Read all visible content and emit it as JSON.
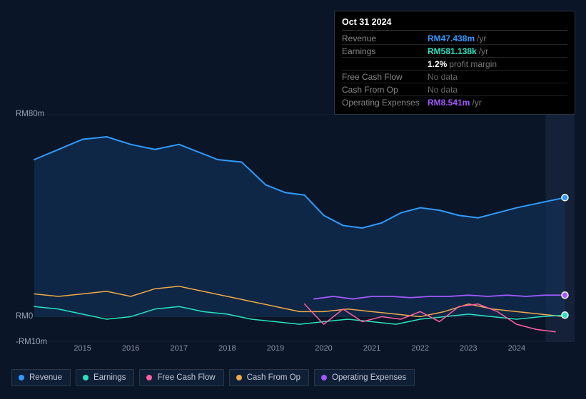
{
  "tooltip": {
    "date": "Oct 31 2024",
    "rows": [
      {
        "label": "Revenue",
        "value": "RM47.438m",
        "suffix": "/yr",
        "cls": "val-rev"
      },
      {
        "label": "Earnings",
        "value": "RM581.138k",
        "suffix": "/yr",
        "cls": "val-earn"
      },
      {
        "label": "",
        "value": "1.2%",
        "suffix": "profit margin",
        "cls": "val-pm"
      },
      {
        "label": "Free Cash Flow",
        "value": "No data",
        "suffix": "",
        "cls": "val-nodata"
      },
      {
        "label": "Cash From Op",
        "value": "No data",
        "suffix": "",
        "cls": "val-nodata"
      },
      {
        "label": "Operating Expenses",
        "value": "RM8.541m",
        "suffix": "/yr",
        "cls": "val-opex"
      }
    ]
  },
  "chart": {
    "ylim": [
      -10,
      80
    ],
    "y_ticks": [
      {
        "v": 80,
        "label": "RM80m"
      },
      {
        "v": 0,
        "label": "RM0"
      },
      {
        "v": -10,
        "label": "-RM10m"
      }
    ],
    "x_ticks": [
      "2015",
      "2016",
      "2017",
      "2018",
      "2019",
      "2020",
      "2021",
      "2022",
      "2023",
      "2024"
    ],
    "x_domain": [
      2014.0,
      2025.2
    ],
    "highlight_band": [
      2024.6,
      2025.2
    ],
    "grid_color": "#1a2432",
    "background": "#0a1628",
    "series": [
      {
        "name": "Revenue",
        "color": "#2f9bff",
        "fill": "#13365f",
        "fill_opacity": 0.55,
        "width": 2,
        "data": [
          [
            2014.0,
            62
          ],
          [
            2014.5,
            66
          ],
          [
            2015.0,
            70
          ],
          [
            2015.5,
            71
          ],
          [
            2016.0,
            68
          ],
          [
            2016.5,
            66
          ],
          [
            2017.0,
            68
          ],
          [
            2017.4,
            65
          ],
          [
            2017.8,
            62
          ],
          [
            2018.3,
            61
          ],
          [
            2018.8,
            52
          ],
          [
            2019.2,
            49
          ],
          [
            2019.6,
            48
          ],
          [
            2020.0,
            40
          ],
          [
            2020.4,
            36
          ],
          [
            2020.8,
            35
          ],
          [
            2021.2,
            37
          ],
          [
            2021.6,
            41
          ],
          [
            2022.0,
            43
          ],
          [
            2022.4,
            42
          ],
          [
            2022.8,
            40
          ],
          [
            2023.2,
            39
          ],
          [
            2023.6,
            41
          ],
          [
            2024.0,
            43
          ],
          [
            2024.5,
            45
          ],
          [
            2025.0,
            47
          ]
        ]
      },
      {
        "name": "Cash From Op",
        "color": "#f0a848",
        "fill": null,
        "width": 1.5,
        "data": [
          [
            2014.0,
            9
          ],
          [
            2014.5,
            8
          ],
          [
            2015.0,
            9
          ],
          [
            2015.5,
            10
          ],
          [
            2016.0,
            8
          ],
          [
            2016.5,
            11
          ],
          [
            2017.0,
            12
          ],
          [
            2017.5,
            10
          ],
          [
            2018.0,
            8
          ],
          [
            2018.5,
            6
          ],
          [
            2019.0,
            4
          ],
          [
            2019.5,
            2
          ],
          [
            2020.0,
            2
          ],
          [
            2020.5,
            3
          ],
          [
            2021.0,
            2
          ],
          [
            2021.5,
            1
          ],
          [
            2022.0,
            0
          ],
          [
            2022.5,
            2
          ],
          [
            2023.0,
            5
          ],
          [
            2023.5,
            3
          ],
          [
            2024.0,
            2
          ],
          [
            2024.5,
            1
          ],
          [
            2025.0,
            0
          ]
        ]
      },
      {
        "name": "Earnings",
        "color": "#29e3c1",
        "fill": null,
        "width": 1.5,
        "data": [
          [
            2014.0,
            4
          ],
          [
            2014.5,
            3
          ],
          [
            2015.0,
            1
          ],
          [
            2015.5,
            -1
          ],
          [
            2016.0,
            0
          ],
          [
            2016.5,
            3
          ],
          [
            2017.0,
            4
          ],
          [
            2017.5,
            2
          ],
          [
            2018.0,
            1
          ],
          [
            2018.5,
            -1
          ],
          [
            2019.0,
            -2
          ],
          [
            2019.5,
            -3
          ],
          [
            2020.0,
            -2
          ],
          [
            2020.5,
            -1
          ],
          [
            2021.0,
            -2
          ],
          [
            2021.5,
            -3
          ],
          [
            2022.0,
            -1
          ],
          [
            2022.5,
            0
          ],
          [
            2023.0,
            1
          ],
          [
            2023.5,
            0
          ],
          [
            2024.0,
            -1
          ],
          [
            2024.5,
            0
          ],
          [
            2025.0,
            0.6
          ]
        ]
      },
      {
        "name": "Free Cash Flow",
        "color": "#ff5fa2",
        "fill": null,
        "width": 1.5,
        "data": [
          [
            2019.6,
            5
          ],
          [
            2020.0,
            -3
          ],
          [
            2020.4,
            3
          ],
          [
            2020.8,
            -2
          ],
          [
            2021.2,
            0
          ],
          [
            2021.6,
            -1
          ],
          [
            2022.0,
            2
          ],
          [
            2022.4,
            -2
          ],
          [
            2022.8,
            4
          ],
          [
            2023.2,
            5
          ],
          [
            2023.6,
            2
          ],
          [
            2024.0,
            -3
          ],
          [
            2024.4,
            -5
          ],
          [
            2024.8,
            -6
          ]
        ]
      },
      {
        "name": "Operating Expenses",
        "color": "#a259ff",
        "fill": null,
        "width": 1.8,
        "data": [
          [
            2019.8,
            7
          ],
          [
            2020.2,
            8
          ],
          [
            2020.6,
            7
          ],
          [
            2021.0,
            8
          ],
          [
            2021.4,
            8
          ],
          [
            2021.8,
            7.5
          ],
          [
            2022.2,
            8
          ],
          [
            2022.6,
            8
          ],
          [
            2023.0,
            8.5
          ],
          [
            2023.4,
            8
          ],
          [
            2023.8,
            8.5
          ],
          [
            2024.2,
            8
          ],
          [
            2024.6,
            8.5
          ],
          [
            2025.0,
            8.5
          ]
        ]
      }
    ],
    "markers": [
      {
        "x": 2025.0,
        "y": 47,
        "color": "#2f9bff"
      },
      {
        "x": 2025.0,
        "y": 8.5,
        "color": "#a259ff"
      },
      {
        "x": 2025.0,
        "y": 0.6,
        "color": "#29e3c1"
      }
    ]
  },
  "legend": [
    {
      "label": "Revenue",
      "color": "#2f9bff"
    },
    {
      "label": "Earnings",
      "color": "#29e3c1"
    },
    {
      "label": "Free Cash Flow",
      "color": "#ff5fa2"
    },
    {
      "label": "Cash From Op",
      "color": "#f0a848"
    },
    {
      "label": "Operating Expenses",
      "color": "#a259ff"
    }
  ]
}
